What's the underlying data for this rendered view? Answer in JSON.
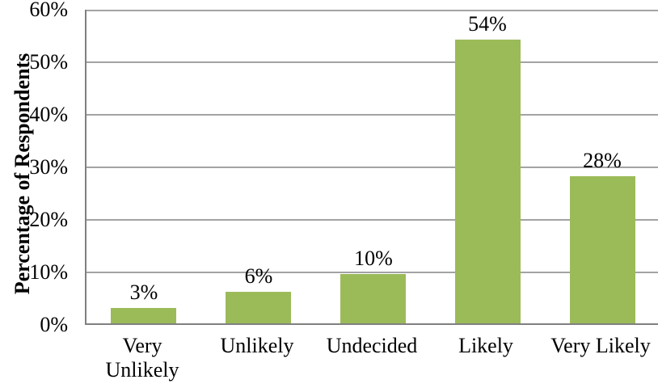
{
  "colors": {
    "bar": "#9BBB59",
    "gridline": "#A3A3A3",
    "axis": "#808080",
    "text": "#000000",
    "background": "#FFFFFF"
  },
  "chart_data": {
    "type": "bar",
    "title": "",
    "xlabel": "",
    "ylabel": "Percentage of Respondents",
    "categories": [
      "Very Unlikely",
      "Unlikely",
      "Undecided",
      "Likely",
      "Very Likely"
    ],
    "values": [
      3,
      6,
      10,
      54,
      28
    ],
    "values_rendered": [
      2.9,
      6,
      9.4,
      54,
      28
    ],
    "data_labels": [
      "3%",
      "6%",
      "10%",
      "54%",
      "28%"
    ],
    "y_ticks": [
      "60%",
      "50%",
      "40%",
      "30%",
      "20%",
      "10%",
      "0%"
    ],
    "y_tick_values": [
      60,
      50,
      40,
      30,
      20,
      10,
      0
    ],
    "ylim": [
      0,
      60
    ],
    "grid": true,
    "legend": "none"
  }
}
